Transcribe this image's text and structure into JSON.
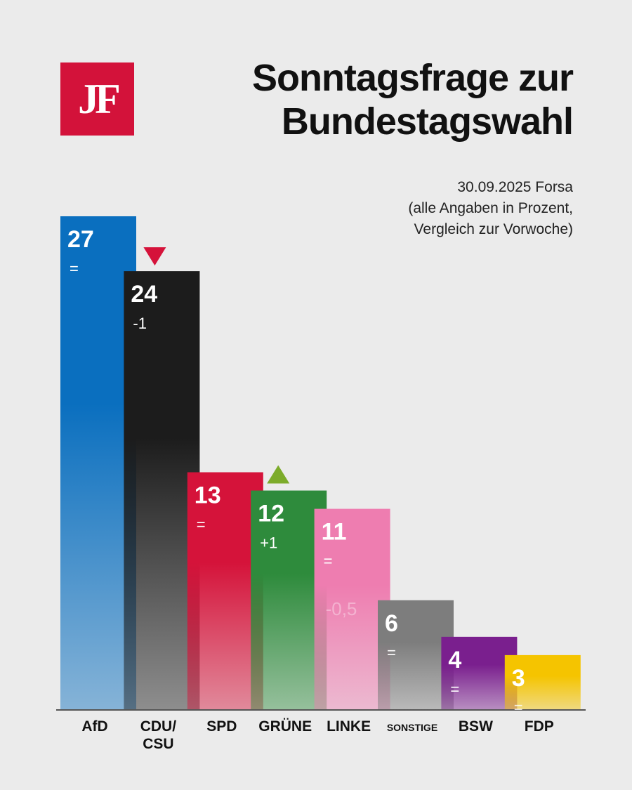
{
  "logo": {
    "text": "JF"
  },
  "title": {
    "line1": "Sonntagsfrage zur",
    "line2": "Bundestagswahl"
  },
  "subtitle": {
    "line1": "30.09.2025 Forsa",
    "line2": "(alle Angaben in Prozent,",
    "line3": "Vergleich zur Vorwoche)"
  },
  "chart_data": {
    "type": "bar",
    "title": "Sonntagsfrage zur Bundestagswahl",
    "xlabel": "",
    "ylabel": "Prozent",
    "ylim": [
      0,
      27
    ],
    "grid": false,
    "categories": [
      [
        "AfD"
      ],
      [
        "CDU/",
        "CSU"
      ],
      [
        "SPD"
      ],
      [
        "GRÜNE"
      ],
      [
        "LINKE"
      ],
      [
        "SONSTIGE"
      ],
      [
        "BSW"
      ],
      [
        "FDP"
      ]
    ],
    "values": [
      27,
      24,
      13,
      12,
      11,
      6,
      4,
      3
    ],
    "changes": [
      "=",
      "-1",
      "=",
      "+1",
      "=",
      "=",
      "=",
      "="
    ],
    "trends": [
      "none",
      "down",
      "none",
      "up",
      "none",
      "none",
      "none",
      "none"
    ],
    "colors": [
      "#0a6fbf",
      "#1c1c1c",
      "#d5133a",
      "#2e8b3c",
      "#ee7db0",
      "#7d7d7d",
      "#7a1f8e",
      "#f5c400"
    ],
    "trend_colors": {
      "up": "#7cab2a",
      "down": "#d5123a"
    },
    "annotations": [
      {
        "category": "LINKE",
        "text": "-0,5"
      }
    ]
  }
}
